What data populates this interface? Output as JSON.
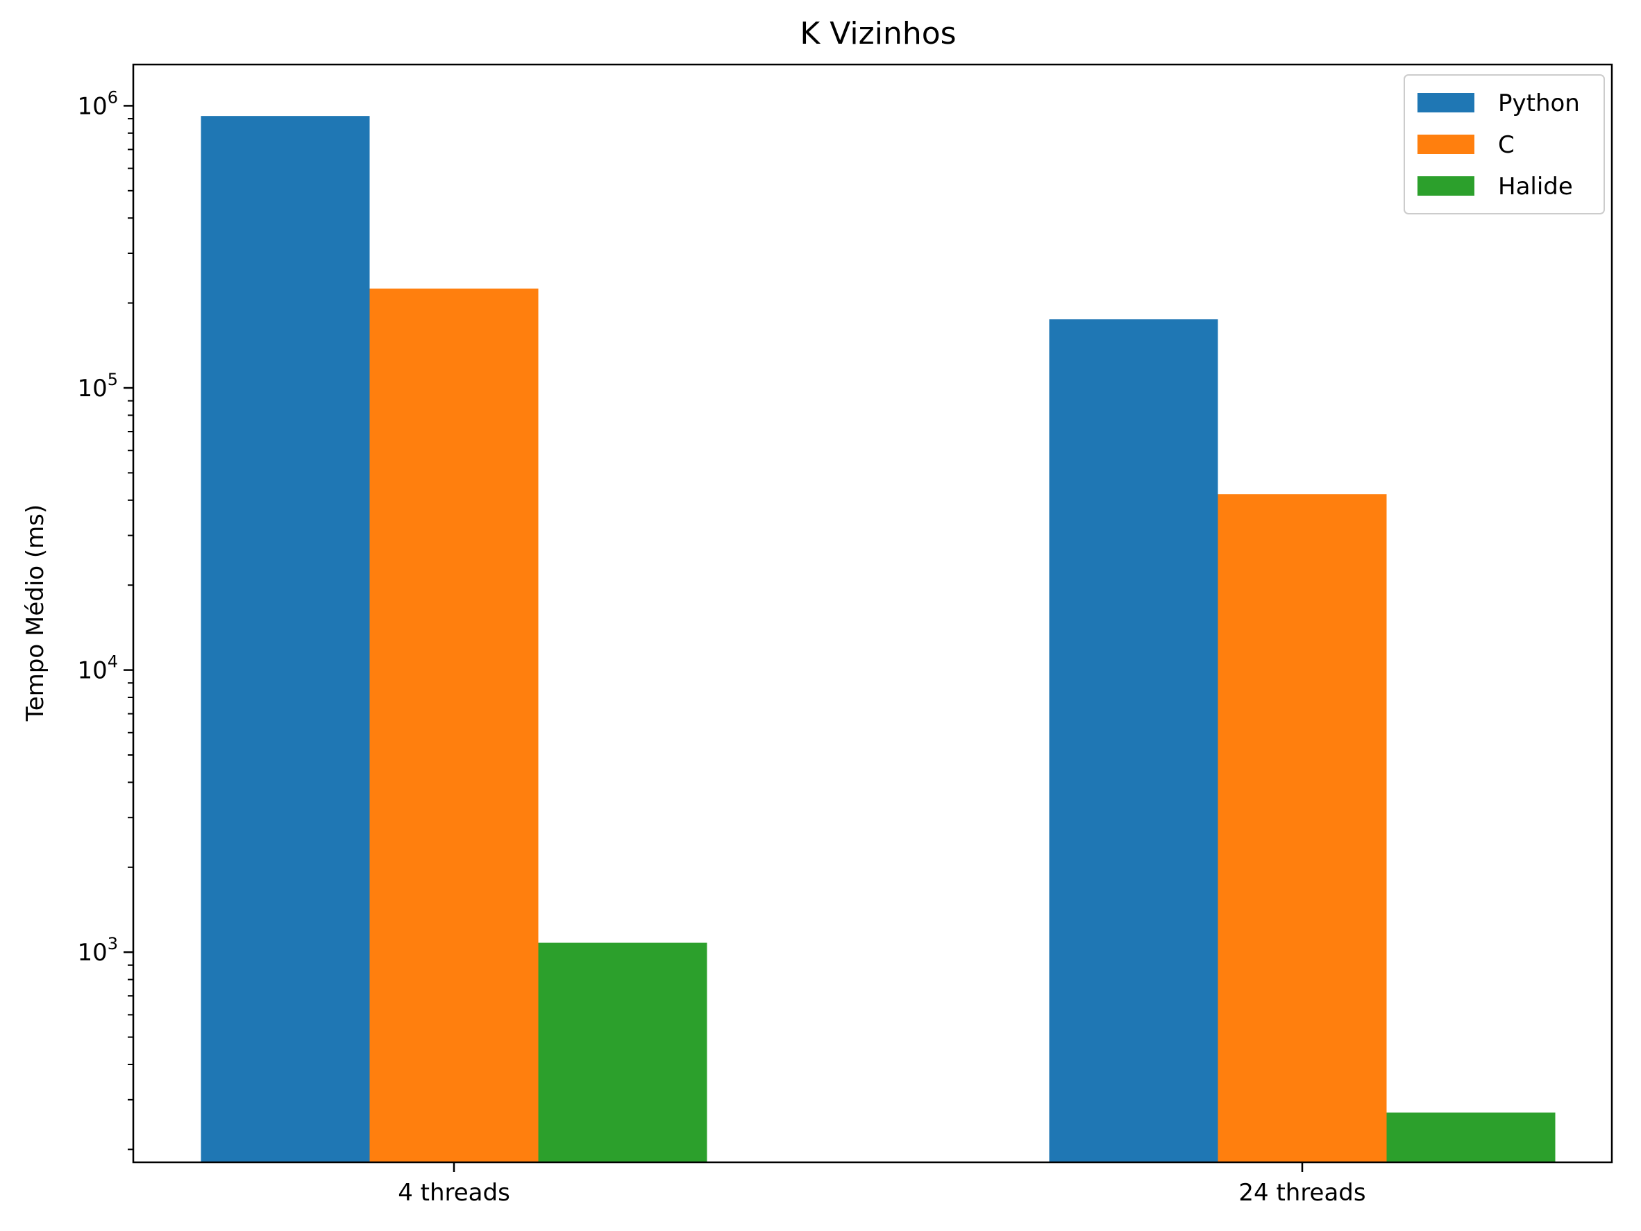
{
  "chart_data": {
    "type": "bar",
    "title": "K Vizinhos",
    "xlabel": "",
    "ylabel": "Tempo Médio (ms)",
    "yscale": "log",
    "ylim": [
      180,
      1400000
    ],
    "categories": [
      "4 threads",
      "24 threads"
    ],
    "series": [
      {
        "name": "Python",
        "color": "#1f77b4",
        "values": [
          920000,
          175000
        ]
      },
      {
        "name": "C",
        "color": "#ff7f0e",
        "values": [
          225000,
          42000
        ]
      },
      {
        "name": "Halide",
        "color": "#2ca02c",
        "values": [
          1080,
          270
        ]
      }
    ],
    "y_ticks": [
      {
        "base": "10",
        "exp": "3",
        "value": 1000
      },
      {
        "base": "10",
        "exp": "4",
        "value": 10000
      },
      {
        "base": "10",
        "exp": "5",
        "value": 100000
      },
      {
        "base": "10",
        "exp": "6",
        "value": 1000000
      }
    ],
    "legend": {
      "position": "top-right"
    },
    "grid": false
  }
}
